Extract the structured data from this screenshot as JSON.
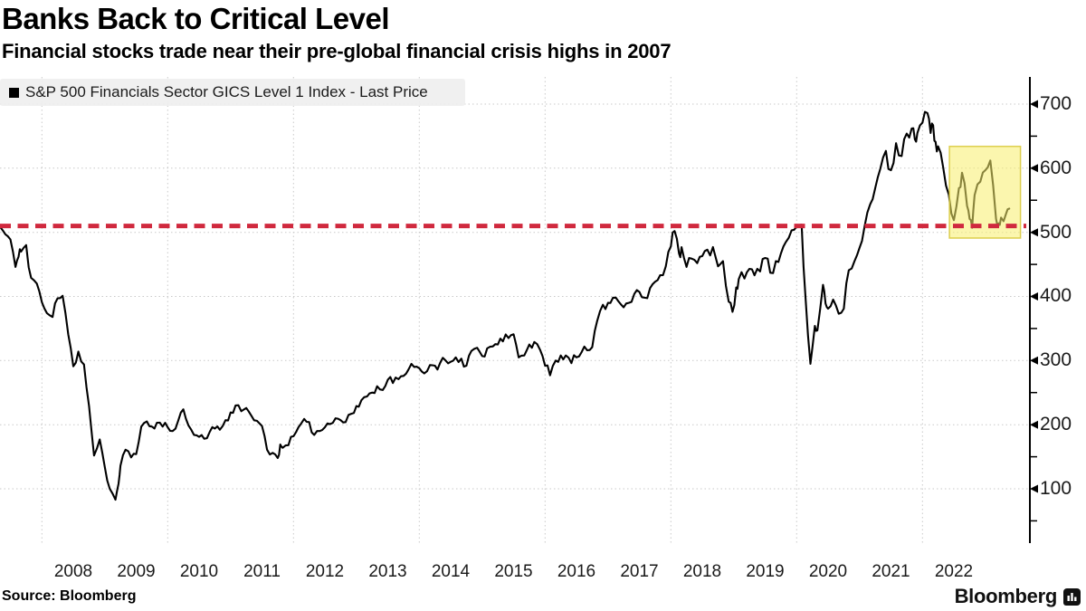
{
  "header": {
    "title": "Banks Back to Critical Level",
    "subtitle": "Financial stocks trade near their pre-global financial crisis highs in 2007"
  },
  "legend": {
    "swatch_color": "#000000",
    "label": "S&P 500 Financials Sector GICS Level 1 Index - Last Price"
  },
  "footer": {
    "source": "Source: Bloomberg",
    "brand": "Bloomberg",
    "brand_icon": "bar-chart-bubble-icon"
  },
  "chart_data": {
    "type": "line",
    "title": "Banks Back to Critical Level",
    "subtitle": "Financial stocks trade near their pre-global financial crisis highs in 2007",
    "xlabel": "",
    "ylabel": "",
    "x_ticks": [
      2008,
      2009,
      2010,
      2011,
      2012,
      2013,
      2014,
      2015,
      2016,
      2017,
      2018,
      2019,
      2020,
      2021,
      2022
    ],
    "x_gridline_years": [
      2008,
      2010,
      2012,
      2014,
      2016,
      2018,
      2020,
      2022
    ],
    "y_ticks": [
      700,
      600,
      500,
      400,
      300,
      200,
      100
    ],
    "y_minor_ticks": [
      650,
      550,
      450,
      350,
      250,
      150,
      50
    ],
    "xlim": [
      2007.33,
      2023.56
    ],
    "ylim": [
      40,
      742
    ],
    "grid": "dotted",
    "legend_position": "top-left",
    "critical_level": {
      "value": 510,
      "color": "#d0293e",
      "style": "dashed",
      "meaning": "2007 pre-crisis high"
    },
    "highlight_box": {
      "t_start": 2022.43,
      "t_end": 2023.56,
      "v_low": 491,
      "v_high": 634,
      "fill": "#f7ee6c",
      "opacity": 0.55,
      "border": "#d9ca3f"
    },
    "series": [
      {
        "name": "S&P 500 Financials Sector GICS Level 1 Index - Last Price",
        "color": "#000000",
        "points": [
          [
            2007.34,
            508
          ],
          [
            2007.42,
            497
          ],
          [
            2007.5,
            489
          ],
          [
            2007.58,
            446
          ],
          [
            2007.63,
            462
          ],
          [
            2007.67,
            470
          ],
          [
            2007.75,
            480
          ],
          [
            2007.83,
            429
          ],
          [
            2007.92,
            420
          ],
          [
            2008.0,
            391
          ],
          [
            2008.08,
            374
          ],
          [
            2008.17,
            368
          ],
          [
            2008.25,
            397
          ],
          [
            2008.33,
            401
          ],
          [
            2008.42,
            341
          ],
          [
            2008.5,
            291
          ],
          [
            2008.58,
            314
          ],
          [
            2008.67,
            294
          ],
          [
            2008.75,
            229
          ],
          [
            2008.83,
            152
          ],
          [
            2008.92,
            177
          ],
          [
            2009.0,
            134
          ],
          [
            2009.08,
            100
          ],
          [
            2009.17,
            83
          ],
          [
            2009.22,
            108
          ],
          [
            2009.25,
            136
          ],
          [
            2009.33,
            161
          ],
          [
            2009.42,
            149
          ],
          [
            2009.5,
            154
          ],
          [
            2009.58,
            197
          ],
          [
            2009.67,
            205
          ],
          [
            2009.75,
            197
          ],
          [
            2009.83,
            203
          ],
          [
            2009.92,
            197
          ],
          [
            2010.0,
            196
          ],
          [
            2010.08,
            190
          ],
          [
            2010.17,
            207
          ],
          [
            2010.25,
            224
          ],
          [
            2010.33,
            199
          ],
          [
            2010.42,
            184
          ],
          [
            2010.5,
            181
          ],
          [
            2010.58,
            178
          ],
          [
            2010.67,
            189
          ],
          [
            2010.75,
            194
          ],
          [
            2010.83,
            192
          ],
          [
            2010.92,
            207
          ],
          [
            2011.0,
            219
          ],
          [
            2011.08,
            230
          ],
          [
            2011.17,
            221
          ],
          [
            2011.25,
            226
          ],
          [
            2011.33,
            214
          ],
          [
            2011.42,
            206
          ],
          [
            2011.5,
            198
          ],
          [
            2011.58,
            161
          ],
          [
            2011.67,
            156
          ],
          [
            2011.75,
            148
          ],
          [
            2011.79,
            169
          ],
          [
            2011.83,
            164
          ],
          [
            2011.92,
            168
          ],
          [
            2012.0,
            182
          ],
          [
            2012.08,
            196
          ],
          [
            2012.17,
            209
          ],
          [
            2012.25,
            204
          ],
          [
            2012.33,
            184
          ],
          [
            2012.42,
            190
          ],
          [
            2012.5,
            196
          ],
          [
            2012.58,
            201
          ],
          [
            2012.67,
            210
          ],
          [
            2012.75,
            207
          ],
          [
            2012.83,
            204
          ],
          [
            2012.92,
            217
          ],
          [
            2013.0,
            229
          ],
          [
            2013.08,
            238
          ],
          [
            2013.17,
            244
          ],
          [
            2013.25,
            250
          ],
          [
            2013.33,
            260
          ],
          [
            2013.42,
            254
          ],
          [
            2013.5,
            270
          ],
          [
            2013.58,
            265
          ],
          [
            2013.67,
            271
          ],
          [
            2013.75,
            276
          ],
          [
            2013.83,
            286
          ],
          [
            2013.92,
            290
          ],
          [
            2014.0,
            288
          ],
          [
            2014.08,
            280
          ],
          [
            2014.17,
            293
          ],
          [
            2014.25,
            292
          ],
          [
            2014.33,
            296
          ],
          [
            2014.42,
            300
          ],
          [
            2014.5,
            298
          ],
          [
            2014.58,
            305
          ],
          [
            2014.67,
            303
          ],
          [
            2014.75,
            292
          ],
          [
            2014.83,
            315
          ],
          [
            2014.92,
            320
          ],
          [
            2015.0,
            307
          ],
          [
            2015.08,
            319
          ],
          [
            2015.17,
            322
          ],
          [
            2015.25,
            325
          ],
          [
            2015.33,
            330
          ],
          [
            2015.42,
            335
          ],
          [
            2015.5,
            341
          ],
          [
            2015.58,
            305
          ],
          [
            2015.67,
            308
          ],
          [
            2015.75,
            325
          ],
          [
            2015.83,
            329
          ],
          [
            2015.92,
            317
          ],
          [
            2016.0,
            292
          ],
          [
            2016.08,
            277
          ],
          [
            2016.17,
            300
          ],
          [
            2016.25,
            308
          ],
          [
            2016.33,
            308
          ],
          [
            2016.42,
            296
          ],
          [
            2016.5,
            305
          ],
          [
            2016.58,
            313
          ],
          [
            2016.67,
            316
          ],
          [
            2016.75,
            321
          ],
          [
            2016.83,
            362
          ],
          [
            2016.92,
            387
          ],
          [
            2017.0,
            390
          ],
          [
            2017.08,
            398
          ],
          [
            2017.17,
            392
          ],
          [
            2017.25,
            383
          ],
          [
            2017.33,
            390
          ],
          [
            2017.42,
            404
          ],
          [
            2017.5,
            407
          ],
          [
            2017.58,
            398
          ],
          [
            2017.67,
            413
          ],
          [
            2017.75,
            423
          ],
          [
            2017.83,
            433
          ],
          [
            2017.92,
            447
          ],
          [
            2018.0,
            478
          ],
          [
            2018.06,
            502
          ],
          [
            2018.13,
            467
          ],
          [
            2018.17,
            477
          ],
          [
            2018.25,
            446
          ],
          [
            2018.33,
            459
          ],
          [
            2018.42,
            452
          ],
          [
            2018.5,
            463
          ],
          [
            2018.58,
            473
          ],
          [
            2018.67,
            477
          ],
          [
            2018.75,
            447
          ],
          [
            2018.83,
            455
          ],
          [
            2018.92,
            392
          ],
          [
            2018.98,
            376
          ],
          [
            2019.04,
            414
          ],
          [
            2019.08,
            427
          ],
          [
            2019.17,
            428
          ],
          [
            2019.25,
            443
          ],
          [
            2019.33,
            433
          ],
          [
            2019.42,
            439
          ],
          [
            2019.5,
            460
          ],
          [
            2019.58,
            437
          ],
          [
            2019.67,
            455
          ],
          [
            2019.75,
            467
          ],
          [
            2019.83,
            485
          ],
          [
            2019.92,
            503
          ],
          [
            2020.0,
            509
          ],
          [
            2020.08,
            512
          ],
          [
            2020.14,
            400
          ],
          [
            2020.22,
            295
          ],
          [
            2020.29,
            354
          ],
          [
            2020.33,
            347
          ],
          [
            2020.42,
            418
          ],
          [
            2020.46,
            389
          ],
          [
            2020.5,
            381
          ],
          [
            2020.58,
            395
          ],
          [
            2020.67,
            373
          ],
          [
            2020.75,
            381
          ],
          [
            2020.83,
            441
          ],
          [
            2020.92,
            455
          ],
          [
            2021.0,
            476
          ],
          [
            2021.08,
            509
          ],
          [
            2021.17,
            544
          ],
          [
            2021.25,
            569
          ],
          [
            2021.33,
            599
          ],
          [
            2021.42,
            627
          ],
          [
            2021.5,
            597
          ],
          [
            2021.58,
            639
          ],
          [
            2021.67,
            619
          ],
          [
            2021.75,
            654
          ],
          [
            2021.83,
            662
          ],
          [
            2021.88,
            645
          ],
          [
            2021.92,
            655
          ],
          [
            2022.0,
            671
          ],
          [
            2022.08,
            686
          ],
          [
            2022.13,
            655
          ],
          [
            2022.17,
            667
          ],
          [
            2022.21,
            641
          ],
          [
            2022.25,
            634
          ],
          [
            2022.33,
            601
          ],
          [
            2022.42,
            559
          ],
          [
            2022.5,
            519
          ],
          [
            2022.58,
            569
          ],
          [
            2022.63,
            593
          ],
          [
            2022.71,
            541
          ],
          [
            2022.75,
            521
          ],
          [
            2022.79,
            507
          ],
          [
            2022.83,
            558
          ],
          [
            2022.92,
            579
          ],
          [
            2023.0,
            597
          ],
          [
            2023.08,
            612
          ],
          [
            2023.17,
            521
          ],
          [
            2023.21,
            514
          ],
          [
            2023.25,
            523
          ],
          [
            2023.33,
            529
          ],
          [
            2023.38,
            537
          ]
        ]
      }
    ]
  }
}
